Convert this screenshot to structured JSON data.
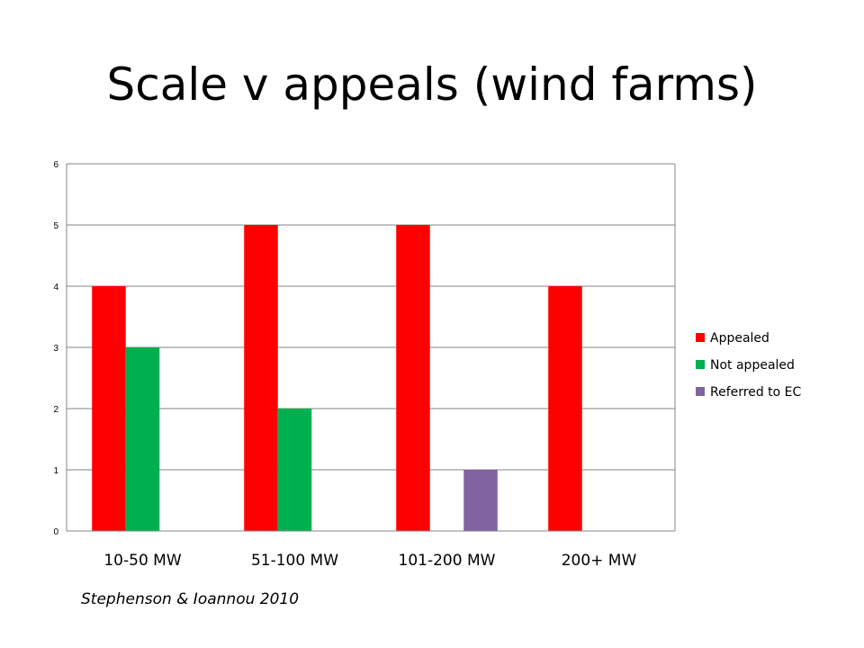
{
  "slide": {
    "title": "Scale v appeals (wind farms)",
    "source": "Stephenson & Ioannou 2010"
  },
  "chart_data": {
    "type": "bar",
    "title": "",
    "xlabel": "",
    "ylabel": "",
    "categories": [
      "10-50 MW",
      "51-100 MW",
      "101-200 MW",
      "200+ MW"
    ],
    "series": [
      {
        "name": "Appealed",
        "color": "#ff0000",
        "values": [
          4,
          5,
          5,
          4
        ]
      },
      {
        "name": "Not appealed",
        "color": "#00b050",
        "values": [
          3,
          2,
          0,
          0
        ]
      },
      {
        "name": "Referred to EC",
        "color": "#8064a2",
        "values": [
          0,
          0,
          1,
          0
        ]
      }
    ],
    "ylim": [
      0,
      6
    ],
    "yticks": [
      "0",
      "1",
      "2",
      "3",
      "4",
      "5",
      "6"
    ],
    "grid": true,
    "legend_position": "right"
  }
}
